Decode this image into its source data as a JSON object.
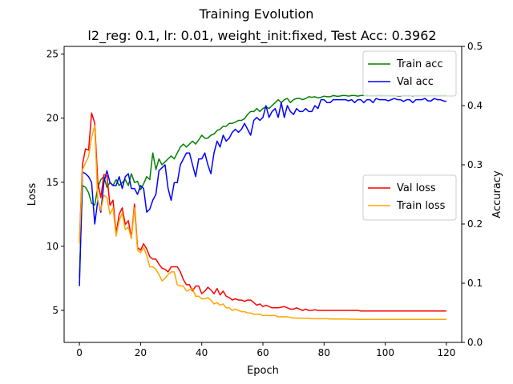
{
  "chart_data": {
    "type": "line",
    "title": "Training Evolution",
    "subtitle": "l2_reg: 0.1, lr: 0.01, weight_init:fixed, Test Acc: 0.3962",
    "xlabel": "Epoch",
    "ylabel_left": "Loss",
    "ylabel_right": "Accuracy",
    "xlim": [
      -5,
      125
    ],
    "ylim_left": [
      2.5,
      25.6
    ],
    "ylim_right": [
      0.0,
      0.5
    ],
    "x_ticks": [
      0,
      20,
      40,
      60,
      80,
      100,
      120
    ],
    "y_ticks_left": [
      5,
      10,
      15,
      20,
      25
    ],
    "y_ticks_right": [
      0.0,
      0.1,
      0.2,
      0.3,
      0.4,
      0.5
    ],
    "grid": false,
    "legend_accuracy": {
      "placement": "upper-right",
      "entries": [
        "Train acc",
        "Val acc"
      ]
    },
    "legend_loss": {
      "placement": "center-right",
      "entries": [
        "Val loss",
        "Train loss"
      ]
    },
    "x": [
      0,
      1,
      2,
      3,
      4,
      5,
      6,
      7,
      8,
      9,
      10,
      11,
      12,
      13,
      14,
      15,
      16,
      17,
      18,
      19,
      20,
      21,
      22,
      23,
      24,
      25,
      26,
      27,
      28,
      29,
      30,
      31,
      32,
      33,
      34,
      35,
      36,
      37,
      38,
      39,
      40,
      41,
      42,
      43,
      44,
      45,
      46,
      47,
      48,
      49,
      50,
      51,
      52,
      53,
      54,
      55,
      56,
      57,
      58,
      59,
      60,
      61,
      62,
      63,
      64,
      65,
      66,
      67,
      68,
      69,
      70,
      71,
      72,
      73,
      74,
      75,
      76,
      77,
      78,
      79,
      80,
      81,
      82,
      83,
      84,
      85,
      86,
      87,
      88,
      89,
      90,
      91,
      92,
      93,
      94,
      95,
      96,
      97,
      98,
      99,
      100,
      101,
      102,
      103,
      104,
      105,
      106,
      107,
      108,
      109,
      110,
      111,
      112,
      113,
      114,
      115,
      116,
      117,
      118,
      119,
      120
    ],
    "series": [
      {
        "name": "Train acc",
        "axis": "right",
        "color": "#008000",
        "values": [
          0.11,
          0.265,
          0.262,
          0.253,
          0.235,
          0.232,
          0.262,
          0.275,
          0.28,
          0.262,
          0.27,
          0.265,
          0.275,
          0.265,
          0.27,
          0.275,
          0.265,
          0.285,
          0.27,
          0.272,
          0.258,
          0.268,
          0.28,
          0.275,
          0.32,
          0.292,
          0.31,
          0.3,
          0.305,
          0.31,
          0.315,
          0.31,
          0.32,
          0.33,
          0.335,
          0.33,
          0.335,
          0.34,
          0.335,
          0.342,
          0.35,
          0.345,
          0.345,
          0.35,
          0.352,
          0.358,
          0.36,
          0.365,
          0.365,
          0.37,
          0.37,
          0.372,
          0.375,
          0.375,
          0.378,
          0.385,
          0.39,
          0.39,
          0.395,
          0.39,
          0.395,
          0.398,
          0.395,
          0.4,
          0.405,
          0.41,
          0.405,
          0.41,
          0.412,
          0.405,
          0.41,
          0.412,
          0.412,
          0.41,
          0.412,
          0.415,
          0.414,
          0.415,
          0.413,
          0.414,
          0.416,
          0.415,
          0.415,
          0.417,
          0.416,
          0.416,
          0.417,
          0.417,
          0.416,
          0.417,
          0.417,
          0.416,
          0.417,
          0.417,
          0.418,
          0.417,
          0.417,
          0.417,
          0.418,
          0.417,
          0.417,
          0.417,
          0.417,
          0.417,
          0.416,
          0.416,
          0.417,
          0.417,
          0.417,
          0.416,
          0.417,
          0.417,
          0.417,
          0.417,
          0.417,
          0.417,
          0.417,
          0.417,
          0.417,
          0.417,
          0.418
        ]
      },
      {
        "name": "Val acc",
        "axis": "right",
        "color": "#0000ff",
        "values": [
          0.095,
          0.288,
          0.285,
          0.28,
          0.27,
          0.2,
          0.24,
          0.22,
          0.27,
          0.29,
          0.27,
          0.265,
          0.265,
          0.28,
          0.26,
          0.28,
          0.285,
          0.26,
          0.26,
          0.25,
          0.265,
          0.26,
          0.22,
          0.225,
          0.24,
          0.25,
          0.29,
          0.295,
          0.3,
          0.26,
          0.24,
          0.27,
          0.27,
          0.3,
          0.31,
          0.32,
          0.32,
          0.3,
          0.28,
          0.31,
          0.31,
          0.32,
          0.3,
          0.285,
          0.32,
          0.34,
          0.33,
          0.35,
          0.34,
          0.345,
          0.355,
          0.36,
          0.355,
          0.36,
          0.37,
          0.36,
          0.35,
          0.375,
          0.38,
          0.375,
          0.38,
          0.4,
          0.38,
          0.39,
          0.395,
          0.38,
          0.405,
          0.38,
          0.4,
          0.39,
          0.385,
          0.395,
          0.39,
          0.39,
          0.395,
          0.39,
          0.39,
          0.4,
          0.395,
          0.41,
          0.41,
          0.405,
          0.405,
          0.41,
          0.41,
          0.41,
          0.41,
          0.41,
          0.408,
          0.41,
          0.405,
          0.41,
          0.41,
          0.405,
          0.41,
          0.41,
          0.405,
          0.412,
          0.41,
          0.41,
          0.41,
          0.408,
          0.41,
          0.412,
          0.41,
          0.41,
          0.407,
          0.41,
          0.41,
          0.405,
          0.41,
          0.41,
          0.41,
          0.412,
          0.408,
          0.408,
          0.412,
          0.41,
          0.41,
          0.408,
          0.407
        ]
      },
      {
        "name": "Val loss",
        "axis": "left",
        "color": "#ff0000",
        "values": [
          10.4,
          16.4,
          17.6,
          17.5,
          20.4,
          19.6,
          15.0,
          13.8,
          15.6,
          15.5,
          13.2,
          13.6,
          11.0,
          12.5,
          13.0,
          11.7,
          12.0,
          10.7,
          13.3,
          9.9,
          9.7,
          10.2,
          9.8,
          9.2,
          9.0,
          9.0,
          8.6,
          8.3,
          8.2,
          8.0,
          8.4,
          8.4,
          8.4,
          8.0,
          7.4,
          7.0,
          7.0,
          6.5,
          6.9,
          6.9,
          6.3,
          6.5,
          6.8,
          6.6,
          6.3,
          6.7,
          6.2,
          6.5,
          6.1,
          6.0,
          5.8,
          5.9,
          5.8,
          5.8,
          5.7,
          5.8,
          5.8,
          5.6,
          5.4,
          5.5,
          5.3,
          5.4,
          5.3,
          5.2,
          5.2,
          5.2,
          5.25,
          5.3,
          5.2,
          5.1,
          5.1,
          5.2,
          5.1,
          5.0,
          5.1,
          5.0,
          5.0,
          5.05,
          5.0,
          5.0,
          5.0,
          5.0,
          5.0,
          5.0,
          5.0,
          5.0,
          5.0,
          5.0,
          5.0,
          5.0,
          5.0,
          5.0,
          4.95,
          4.95,
          4.95,
          4.95,
          4.95,
          4.95,
          4.95,
          4.95,
          4.95,
          4.95,
          4.95,
          4.95,
          4.95,
          4.95,
          4.95,
          4.95,
          4.95,
          4.95,
          4.95,
          4.95,
          4.95,
          4.95,
          4.95,
          4.95,
          4.95,
          4.95,
          4.95,
          4.95,
          4.95
        ]
      },
      {
        "name": "Train loss",
        "axis": "left",
        "color": "#ffa500",
        "values": [
          10.2,
          16.0,
          16.5,
          17.0,
          18.5,
          19.4,
          13.5,
          12.8,
          14.0,
          13.8,
          12.5,
          13.0,
          10.8,
          12.0,
          12.6,
          11.3,
          11.5,
          10.6,
          13.0,
          9.7,
          9.5,
          9.9,
          9.3,
          8.4,
          8.4,
          8.2,
          7.8,
          7.3,
          7.5,
          7.8,
          8.0,
          8.0,
          7.0,
          6.9,
          6.9,
          6.5,
          6.6,
          6.7,
          6.1,
          6.1,
          5.9,
          5.9,
          6.0,
          5.8,
          5.5,
          5.6,
          5.4,
          5.5,
          5.2,
          5.2,
          5.0,
          5.1,
          5.0,
          4.9,
          4.9,
          4.8,
          4.8,
          4.7,
          4.7,
          4.7,
          4.6,
          4.6,
          4.6,
          4.6,
          4.6,
          4.5,
          4.5,
          4.5,
          4.5,
          4.45,
          4.4,
          4.4,
          4.4,
          4.38,
          4.38,
          4.38,
          4.35,
          4.35,
          4.35,
          4.35,
          4.35,
          4.35,
          4.33,
          4.33,
          4.33,
          4.32,
          4.32,
          4.32,
          4.31,
          4.31,
          4.31,
          4.3,
          4.3,
          4.3,
          4.3,
          4.3,
          4.3,
          4.3,
          4.3,
          4.3,
          4.3,
          4.3,
          4.3,
          4.3,
          4.3,
          4.3,
          4.3,
          4.3,
          4.3,
          4.3,
          4.3,
          4.3,
          4.3,
          4.3,
          4.3,
          4.3,
          4.3,
          4.3,
          4.3,
          4.3,
          4.3
        ]
      }
    ]
  }
}
